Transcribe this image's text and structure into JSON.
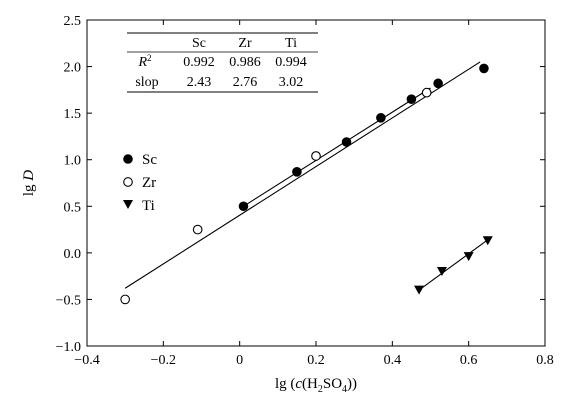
{
  "chart_data": {
    "type": "scatter",
    "xlabel": {
      "prefix": "lg (",
      "c": "c",
      "open": "(H",
      "sub1": "2",
      "mid": "SO",
      "sub2": "4",
      "close": "))"
    },
    "ylabel": {
      "prefix": "lg ",
      "var": "D"
    },
    "xlim": [
      -0.4,
      0.8
    ],
    "ylim": [
      -1.0,
      2.5
    ],
    "x_ticks": [
      -0.4,
      -0.2,
      0.0,
      0.2,
      0.4,
      0.6,
      0.8
    ],
    "x_tick_labels": [
      "−0.4",
      "−0.2",
      "0",
      "0.2",
      "0.4",
      "0.6",
      "0.8"
    ],
    "y_ticks": [
      -1.0,
      -0.5,
      0.0,
      0.5,
      1.0,
      1.5,
      2.0,
      2.5
    ],
    "y_tick_labels": [
      "−1.0",
      "−0.5",
      "0.0",
      "0.5",
      "1.0",
      "1.5",
      "2.0",
      "2.5"
    ],
    "grid": false,
    "legend_position": "left-middle",
    "series": [
      {
        "name": "Sc",
        "marker": "filled-circle",
        "points": [
          [
            0.01,
            0.5
          ],
          [
            0.15,
            0.87
          ],
          [
            0.28,
            1.19
          ],
          [
            0.37,
            1.45
          ],
          [
            0.45,
            1.65
          ],
          [
            0.52,
            1.82
          ],
          [
            0.64,
            1.98
          ]
        ],
        "fit": [
          [
            0.01,
            0.5
          ],
          [
            0.5,
            1.77
          ]
        ]
      },
      {
        "name": "Zr",
        "marker": "open-circle",
        "points": [
          [
            -0.3,
            -0.5
          ],
          [
            -0.11,
            0.25
          ],
          [
            0.2,
            1.04
          ],
          [
            0.49,
            1.72
          ]
        ],
        "fit": [
          [
            -0.3,
            -0.38
          ],
          [
            0.63,
            2.05
          ]
        ]
      },
      {
        "name": "Ti",
        "marker": "filled-triangle-down",
        "points": [
          [
            0.47,
            -0.4
          ],
          [
            0.53,
            -0.2
          ],
          [
            0.6,
            -0.04
          ],
          [
            0.65,
            0.13
          ]
        ],
        "fit": [
          [
            0.47,
            -0.4
          ],
          [
            0.65,
            0.14
          ]
        ]
      }
    ],
    "stats_table": {
      "headers": [
        "",
        "Sc",
        "Zr",
        "Ti"
      ],
      "rows": [
        {
          "label_main": "R",
          "label_sup": "2",
          "values": [
            "0.992",
            "0.986",
            "0.994"
          ]
        },
        {
          "label_main": "slop",
          "label_sup": "",
          "values": [
            "2.43",
            "2.76",
            "3.02"
          ]
        }
      ]
    }
  }
}
